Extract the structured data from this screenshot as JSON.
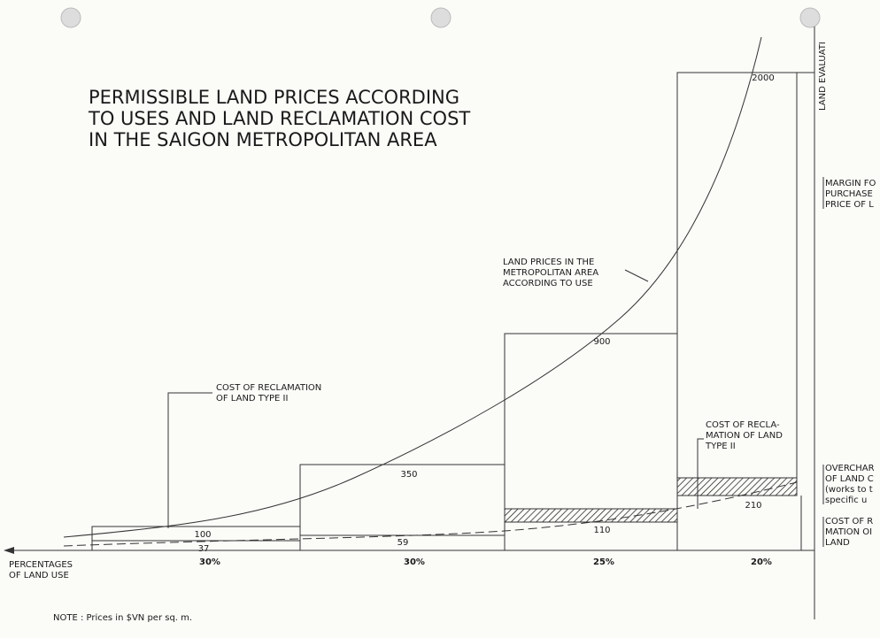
{
  "title": [
    "PERMISSIBLE  LAND  PRICES  ACCORDING",
    "TO  USES  AND  LAND  RECLAMATION  COST",
    "IN  THE  SAIGON  METROPOLITAN  AREA"
  ],
  "axis": {
    "x_label": [
      "PERCENTAGES",
      "OF LAND USE"
    ],
    "y_label": "LAND  EVALUATI"
  },
  "columns": [
    {
      "share": "30%",
      "land_price": "100",
      "reclamation_cost": "37"
    },
    {
      "share": "30%",
      "land_price": "350",
      "reclamation_cost": "59"
    },
    {
      "share": "25%",
      "land_price": "900",
      "reclamation_cost": "110"
    },
    {
      "share": "20%",
      "land_price": "2000",
      "reclamation_cost": "210"
    }
  ],
  "annotations": {
    "reclamation_type_ii_left": [
      "COST OF RECLAMATION",
      "OF LAND  TYPE  II"
    ],
    "land_prices_curve": [
      "LAND PRICES IN THE",
      "METROPOLITAN  AREA",
      "ACCORDING  TO  USE"
    ],
    "reclamation_type_ii_right": [
      "COST OF RECLA-",
      "MATION OF LAND",
      "TYPE  II"
    ],
    "margin": [
      "MARGIN FO",
      "PURCHASE",
      "PRICE OF L"
    ],
    "overcharge": [
      "OVERCHAR",
      "OF LAND C",
      "(works to t",
      "specific u"
    ],
    "cost_of_reclamation": [
      "COST OF R",
      "MATION OI",
      "LAND"
    ]
  },
  "note": "NOTE :   Prices  in  $VN  per  sq. m."
}
